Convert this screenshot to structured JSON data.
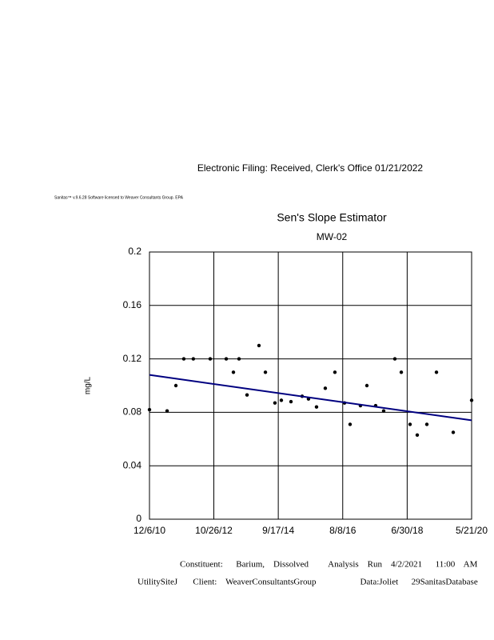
{
  "header": {
    "filing": "Electronic Filing: Received, Clerk's Office 01/21/2022",
    "license": "Sanitas™ v.9.6.28 Software licensed to Weaver Consultants Group. EPA"
  },
  "chart_data": {
    "type": "scatter",
    "title": "Sen's Slope Estimator",
    "subtitle": "MW-02",
    "y_label": "mg/L",
    "x": [
      "12/6/10",
      "6/13/11",
      "9/15/11",
      "12/9/11",
      "3/20/12",
      "9/17/12",
      "3/8/13",
      "5/24/13",
      "7/23/13",
      "10/17/13",
      "2/22/14",
      "5/2/14",
      "8/12/14",
      "10/20/14",
      "1/31/15",
      "5/31/15",
      "8/7/15",
      "11/1/15",
      "2/3/16",
      "5/16/16",
      "8/27/16",
      "10/26/16",
      "2/14/17",
      "4/24/17",
      "7/27/17",
      "10/21/17",
      "2/18/18",
      "4/28/18",
      "7/31/18",
      "10/16/18",
      "1/27/19",
      "5/10/19",
      "11/6/19",
      "5/21/20"
    ],
    "values": [
      0.082,
      0.081,
      0.1,
      0.12,
      0.12,
      0.12,
      0.12,
      0.11,
      0.12,
      0.093,
      0.13,
      0.11,
      0.087,
      0.089,
      0.088,
      0.092,
      0.09,
      0.084,
      0.098,
      0.11,
      0.087,
      0.071,
      0.085,
      0.1,
      0.085,
      0.081,
      0.12,
      0.11,
      0.071,
      0.063,
      0.071,
      0.11,
      0.065,
      0.089
    ],
    "color": "#000000",
    "trend": {
      "x": [
        "12/6/10",
        "5/21/20"
      ],
      "values": [
        0.108,
        0.074
      ],
      "color": "#000080"
    },
    "xlim": [
      "12/6/10",
      "5/21/20"
    ],
    "xticks": [
      "12/6/10",
      "10/26/12",
      "9/17/14",
      "8/8/16",
      "6/30/18",
      "5/21/20"
    ],
    "ylim": [
      0,
      0.2
    ],
    "yticks": [
      0,
      0.04,
      0.08,
      0.12,
      0.16,
      0.2
    ],
    "grid": true
  },
  "footer": {
    "line1": "Constituent:      Barium,    Dissolved         Analysis    Run    4/2/2021      11:00    AM",
    "line2": "UtilitySiteJ       Client:    WeaverConsultantsGroup                    Data:Joliet      29SanitasDatabase"
  }
}
